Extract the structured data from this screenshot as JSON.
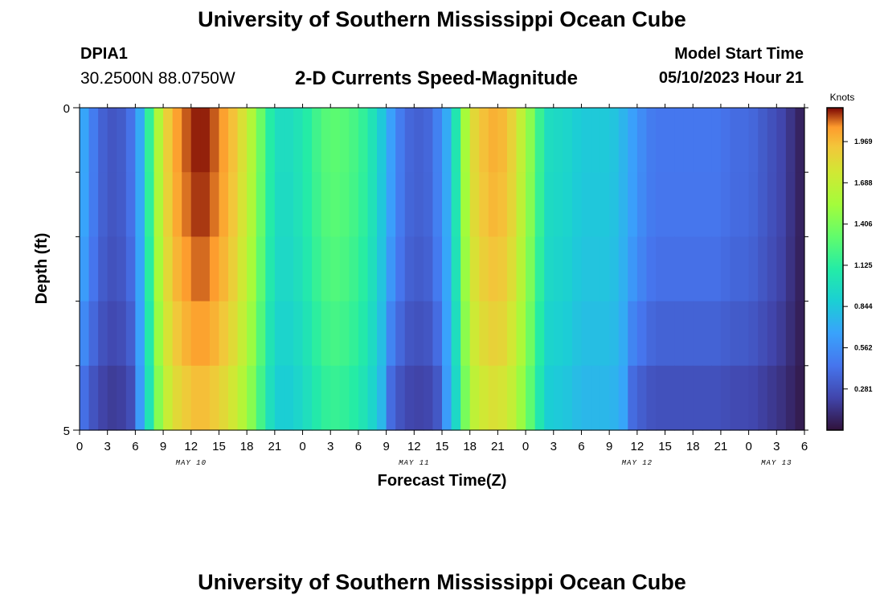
{
  "header": {
    "title": "University of Southern Mississippi Ocean Cube",
    "station": "DPIA1",
    "coords": "30.2500N  88.0750W",
    "subtitle": "2-D Currents Speed-Magnitude",
    "model_start_label": "Model Start Time",
    "model_start_value": "05/10/2023 Hour 21"
  },
  "footer": {
    "title": "University of Southern Mississippi Ocean Cube"
  },
  "chart_data": {
    "type": "heatmap",
    "title": "2-D Currents Speed-Magnitude",
    "xlabel": "Forecast Time(Z)",
    "ylabel": "Depth (ft)",
    "ylim": [
      0,
      5
    ],
    "y_ticks": [
      "0",
      "5"
    ],
    "x_tick_labels": [
      "0",
      "3",
      "6",
      "9",
      "12",
      "15",
      "18",
      "21",
      "0",
      "3",
      "6",
      "9",
      "12",
      "15",
      "18",
      "21",
      "0",
      "3",
      "6",
      "9",
      "12",
      "15",
      "18",
      "21",
      "0",
      "3",
      "6"
    ],
    "day_labels": [
      {
        "label": "MAY 10",
        "hour": 12
      },
      {
        "label": "MAY 11",
        "hour": 36
      },
      {
        "label": "MAY 12",
        "hour": 60
      },
      {
        "label": "MAY 13",
        "hour": 75
      }
    ],
    "x_range_hours": [
      0,
      78
    ],
    "depth_rows": 5,
    "colorbar": {
      "unit": "Knots",
      "min": 0,
      "max": 2.2,
      "ticks": [
        "0.281",
        "0.562",
        "0.844",
        "1.125",
        "1.406",
        "1.688",
        "1.969"
      ]
    },
    "profile_hours": [
      0,
      1,
      2,
      3,
      4,
      5,
      6,
      7,
      8,
      9,
      10,
      11,
      12,
      13,
      14,
      15,
      16,
      17,
      18,
      19,
      20,
      21,
      22,
      23,
      24,
      25,
      26,
      27,
      28,
      29,
      30,
      31,
      32,
      33,
      34,
      35,
      36,
      37,
      38,
      39,
      40,
      41,
      42,
      43,
      44,
      45,
      46,
      47,
      48,
      49,
      50,
      51,
      52,
      53,
      54,
      55,
      56,
      57,
      58,
      59,
      60,
      61,
      62,
      63,
      64,
      65,
      66,
      67,
      68,
      69,
      70,
      71,
      72,
      73,
      74,
      75,
      76,
      77,
      78
    ],
    "surface_profile": [
      0.8,
      0.55,
      0.4,
      0.3,
      0.3,
      0.35,
      0.5,
      0.9,
      1.4,
      1.8,
      2.0,
      2.1,
      2.15,
      2.2,
      2.15,
      2.1,
      2.0,
      1.9,
      1.7,
      1.5,
      1.2,
      1.0,
      0.95,
      1.0,
      1.05,
      1.15,
      1.25,
      1.3,
      1.3,
      1.25,
      1.2,
      1.1,
      0.95,
      0.75,
      0.55,
      0.4,
      0.35,
      0.35,
      0.4,
      0.6,
      0.8,
      1.3,
      1.8,
      1.9,
      2.0,
      2.0,
      1.95,
      1.8,
      1.55,
      1.35,
      1.0,
      0.95,
      0.95,
      0.9,
      0.85,
      0.85,
      0.85,
      0.85,
      0.8,
      0.7,
      0.6,
      0.5,
      0.45,
      0.45,
      0.45,
      0.45,
      0.45,
      0.45,
      0.45,
      0.45,
      0.4,
      0.4,
      0.4,
      0.35,
      0.3,
      0.25,
      0.2,
      0.1,
      0.05
    ],
    "depth_factors": [
      1.0,
      0.99,
      0.97,
      0.94,
      0.9
    ],
    "low_damp": [
      1.0,
      1.0,
      0.96,
      0.85,
      0.68
    ]
  }
}
